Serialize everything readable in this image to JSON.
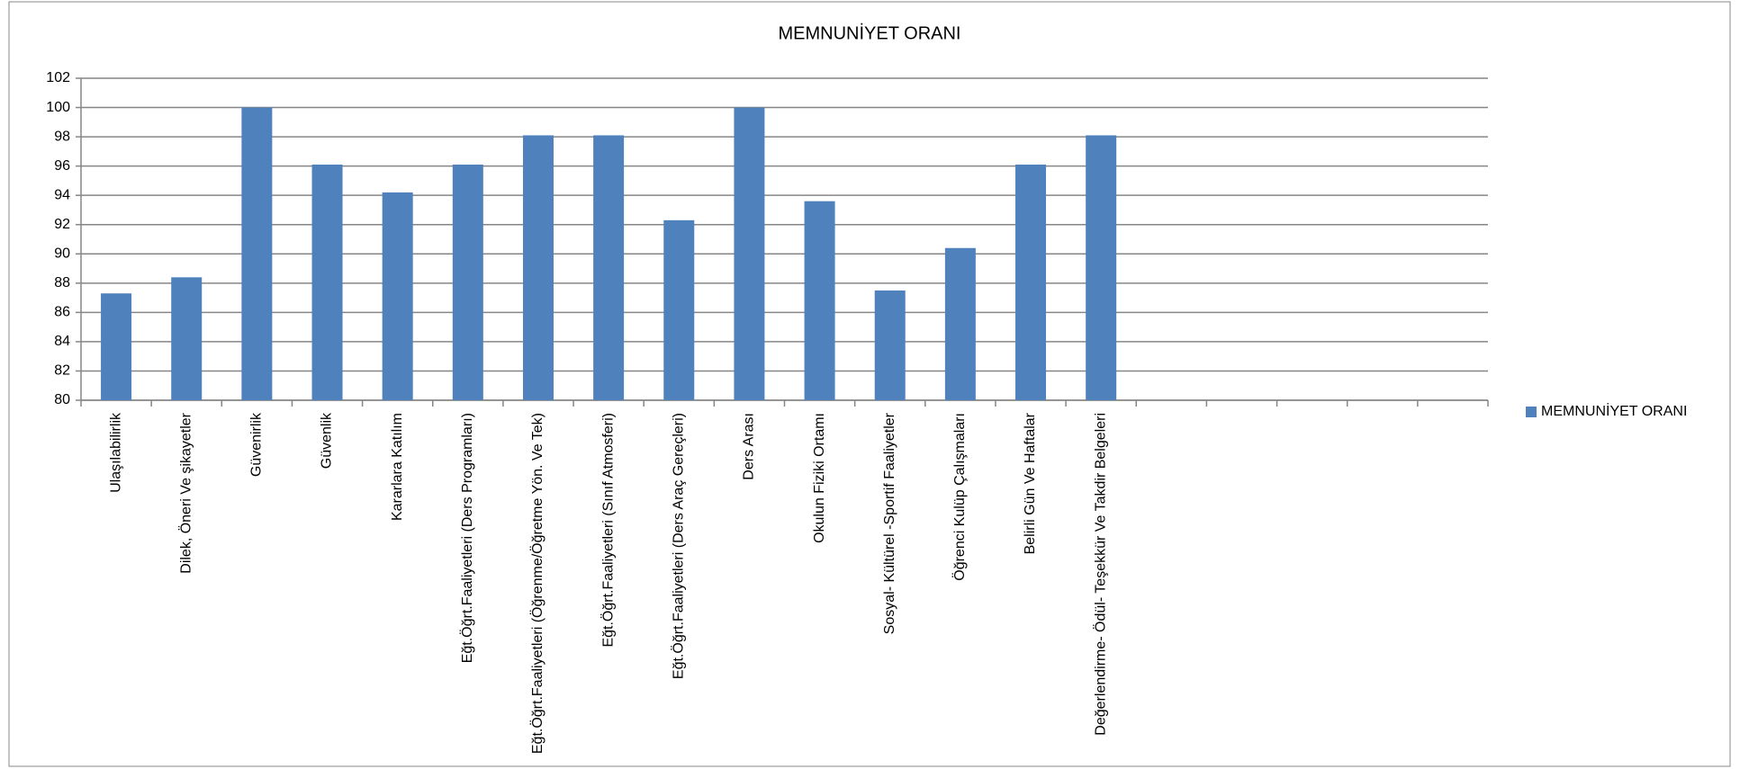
{
  "chart_data": {
    "type": "bar",
    "title": "MEMNUNİYET ORANI",
    "categories": [
      "Ulaşılabilirlik",
      "Dilek, Öneri Ve şikayetler",
      "Güvenirlik",
      "Güvenlik",
      "Kararlara Katılım",
      "Eğt.Öğrt.Faaliyetleri (Ders Programları)",
      "Eğt.Öğrt.Faaliyetleri (Öğrenme/Öğretme Yön. Ve Tek)",
      "Eğt.Öğrt.Faaliyetleri (Sınıf Atmosferi)",
      "Eğt.Öğrt.Faaliyetleri (Ders Araç Gereçleri)",
      "Ders Arası",
      "Okulun Fiziki Ortamı",
      "Sosyal- Kültürel -Sportif Faaliyetler",
      "Öğrenci Kulüp Çalışmaları",
      "Belirli Gün Ve Haftalar",
      "Değerlendirme- Ödül- Teşekkür Ve Takdir Belgeleri",
      null,
      null,
      null,
      null,
      null
    ],
    "series": [
      {
        "name": "MEMNUNİYET ORANI",
        "color": "#4f81bd",
        "values": [
          87.3,
          88.4,
          100,
          96.1,
          94.2,
          96.1,
          98.1,
          98.1,
          92.3,
          100,
          93.6,
          87.5,
          90.4,
          96.1,
          98.1,
          null,
          null,
          null,
          null,
          null
        ]
      }
    ],
    "ylim": [
      80,
      102
    ],
    "yticks": [
      80,
      82,
      84,
      86,
      88,
      90,
      92,
      94,
      96,
      98,
      100,
      102
    ],
    "grid": true,
    "legend": "right"
  }
}
